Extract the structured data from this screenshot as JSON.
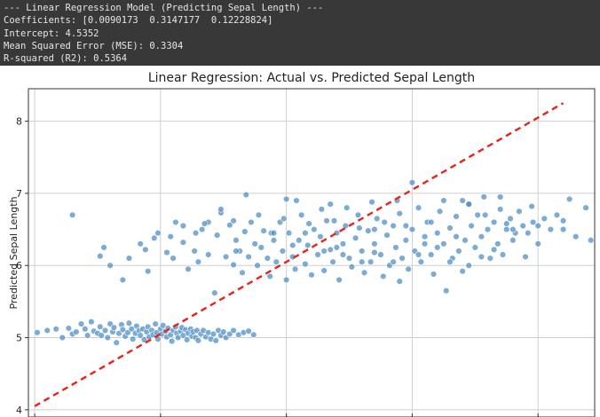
{
  "console": {
    "lines": [
      "--- Linear Regression Model (Predicting Sepal Length) ---",
      "Coefficients: [0.0090173  0.3147177  0.12228824]",
      "Intercept: 4.5352",
      "Mean Squared Error (MSE): 0.3304",
      "R-squared (R2): 0.5364"
    ]
  },
  "chart_data": {
    "type": "scatter",
    "title": "Linear Regression: Actual vs. Predicted Sepal Length",
    "xlabel": "",
    "ylabel": "Predicted Sepal Length",
    "xlim": [
      3.95,
      8.45
    ],
    "ylim": [
      3.9,
      8.45
    ],
    "yticks": [
      4,
      5,
      6,
      7,
      8
    ],
    "xgrid": [
      4.0,
      5.0,
      6.0,
      7.0,
      8.0
    ],
    "grid": true,
    "point_color": "#4a8bc2",
    "reference_line": {
      "style": "dashed",
      "color": "#e8231b",
      "x": [
        4.0,
        8.2
      ],
      "y": [
        4.05,
        8.25
      ]
    },
    "series": [
      {
        "points": [
          [
            4.02,
            5.07
          ],
          [
            4.1,
            5.1
          ],
          [
            4.17,
            5.12
          ],
          [
            4.22,
            5.0
          ],
          [
            4.27,
            5.13
          ],
          [
            4.3,
            5.05
          ],
          [
            4.33,
            5.08
          ],
          [
            4.37,
            5.19
          ],
          [
            4.4,
            5.12
          ],
          [
            4.42,
            5.03
          ],
          [
            4.45,
            5.22
          ],
          [
            4.47,
            5.09
          ],
          [
            4.5,
            5.06
          ],
          [
            4.52,
            5.15
          ],
          [
            4.53,
            5.03
          ],
          [
            4.56,
            5.1
          ],
          [
            4.58,
            5.0
          ],
          [
            4.6,
            5.19
          ],
          [
            4.62,
            5.08
          ],
          [
            4.63,
            5.14
          ],
          [
            4.65,
            4.93
          ],
          [
            4.67,
            5.06
          ],
          [
            4.69,
            5.18
          ],
          [
            4.7,
            5.11
          ],
          [
            4.72,
            5.02
          ],
          [
            4.74,
            5.07
          ],
          [
            4.75,
            5.2
          ],
          [
            4.77,
            5.12
          ],
          [
            4.78,
            4.98
          ],
          [
            4.8,
            5.06
          ],
          [
            4.81,
            5.16
          ],
          [
            4.83,
            5.1
          ],
          [
            4.84,
            5.03
          ],
          [
            4.86,
            5.12
          ],
          [
            4.87,
            4.97
          ],
          [
            4.89,
            5.08
          ],
          [
            4.9,
            5.15
          ],
          [
            4.91,
            5.01
          ],
          [
            4.93,
            5.1
          ],
          [
            4.94,
            5.04
          ],
          [
            4.96,
            5.19
          ],
          [
            4.97,
            5.07
          ],
          [
            4.98,
            4.98
          ],
          [
            5.0,
            5.12
          ],
          [
            5.01,
            5.05
          ],
          [
            5.02,
            5.17
          ],
          [
            5.04,
            5.09
          ],
          [
            5.05,
            5.01
          ],
          [
            5.06,
            5.13
          ],
          [
            5.08,
            5.04
          ],
          [
            5.09,
            4.95
          ],
          [
            5.1,
            5.1
          ],
          [
            5.12,
            5.15
          ],
          [
            5.13,
            5.06
          ],
          [
            5.14,
            5.0
          ],
          [
            5.16,
            5.09
          ],
          [
            5.17,
            5.14
          ],
          [
            5.18,
            5.03
          ],
          [
            5.2,
            5.11
          ],
          [
            5.21,
            4.97
          ],
          [
            5.22,
            5.06
          ],
          [
            5.24,
            5.12
          ],
          [
            5.25,
            5.02
          ],
          [
            5.26,
            5.08
          ],
          [
            5.28,
            5.0
          ],
          [
            5.29,
            5.1
          ],
          [
            5.3,
            4.96
          ],
          [
            5.32,
            5.05
          ],
          [
            5.34,
            5.1
          ],
          [
            5.36,
            5.01
          ],
          [
            5.38,
            5.07
          ],
          [
            5.4,
            4.98
          ],
          [
            5.42,
            5.05
          ],
          [
            5.44,
            4.96
          ],
          [
            5.46,
            5.1
          ],
          [
            5.48,
            5.03
          ],
          [
            5.5,
            5.08
          ],
          [
            5.52,
            5.0
          ],
          [
            5.55,
            5.05
          ],
          [
            5.58,
            5.1
          ],
          [
            5.62,
            5.04
          ],
          [
            5.66,
            5.07
          ],
          [
            5.7,
            5.09
          ],
          [
            5.74,
            5.04
          ],
          [
            4.75,
            6.1
          ],
          [
            4.6,
            6.0
          ],
          [
            4.52,
            6.13
          ],
          [
            4.84,
            6.3
          ],
          [
            4.9,
            5.92
          ],
          [
            5.05,
            6.18
          ],
          [
            5.1,
            6.1
          ],
          [
            5.18,
            6.32
          ],
          [
            5.22,
            5.95
          ],
          [
            5.27,
            6.2
          ],
          [
            5.3,
            6.05
          ],
          [
            5.33,
            6.5
          ],
          [
            5.38,
            6.15
          ],
          [
            5.43,
            5.62
          ],
          [
            5.45,
            6.42
          ],
          [
            5.48,
            6.73
          ],
          [
            5.52,
            6.12
          ],
          [
            5.55,
            6.56
          ],
          [
            5.58,
            6.01
          ],
          [
            5.6,
            6.35
          ],
          [
            5.63,
            6.2
          ],
          [
            5.65,
            5.9
          ],
          [
            5.67,
            6.47
          ],
          [
            5.7,
            6.12
          ],
          [
            5.72,
            6.6
          ],
          [
            5.75,
            6.3
          ],
          [
            5.77,
            6.0
          ],
          [
            5.8,
            6.25
          ],
          [
            5.82,
            6.48
          ],
          [
            5.85,
            6.1
          ],
          [
            5.87,
            5.85
          ],
          [
            5.9,
            6.35
          ],
          [
            5.92,
            6.05
          ],
          [
            5.95,
            6.6
          ],
          [
            5.97,
            6.2
          ],
          [
            6.0,
            5.8
          ],
          [
            6.02,
            6.45
          ],
          [
            6.05,
            6.12
          ],
          [
            6.07,
            5.95
          ],
          [
            6.1,
            6.35
          ],
          [
            6.12,
            6.7
          ],
          [
            6.15,
            6.02
          ],
          [
            6.17,
            6.28
          ],
          [
            6.2,
            5.87
          ],
          [
            6.22,
            6.5
          ],
          [
            6.25,
            6.15
          ],
          [
            6.27,
            6.4
          ],
          [
            6.3,
            5.93
          ],
          [
            6.32,
            6.62
          ],
          [
            6.35,
            6.22
          ],
          [
            6.37,
            6.05
          ],
          [
            6.4,
            6.45
          ],
          [
            6.42,
            5.8
          ],
          [
            6.45,
            6.3
          ],
          [
            6.47,
            6.55
          ],
          [
            6.5,
            6.1
          ],
          [
            6.52,
            5.98
          ],
          [
            6.55,
            6.38
          ],
          [
            6.57,
            6.7
          ],
          [
            6.6,
            6.2
          ],
          [
            6.62,
            5.9
          ],
          [
            6.65,
            6.48
          ],
          [
            6.67,
            6.05
          ],
          [
            6.7,
            6.3
          ],
          [
            6.72,
            6.65
          ],
          [
            6.75,
            6.15
          ],
          [
            6.77,
            5.85
          ],
          [
            6.8,
            6.42
          ],
          [
            6.82,
            6.0
          ],
          [
            6.85,
            6.55
          ],
          [
            6.87,
            6.25
          ],
          [
            6.9,
            6.72
          ],
          [
            6.92,
            6.1
          ],
          [
            6.95,
            6.35
          ],
          [
            6.97,
            5.95
          ],
          [
            7.0,
            6.5
          ],
          [
            7.02,
            6.2
          ],
          [
            7.05,
            6.8
          ],
          [
            7.07,
            6.05
          ],
          [
            7.1,
            6.4
          ],
          [
            7.12,
            6.6
          ],
          [
            7.15,
            6.15
          ],
          [
            7.17,
            5.88
          ],
          [
            7.2,
            6.45
          ],
          [
            7.22,
            6.75
          ],
          [
            7.25,
            6.3
          ],
          [
            7.27,
            5.65
          ],
          [
            7.3,
            6.52
          ],
          [
            7.32,
            6.1
          ],
          [
            7.35,
            6.68
          ],
          [
            7.37,
            6.2
          ],
          [
            7.4,
            6.9
          ],
          [
            7.42,
            6.35
          ],
          [
            7.45,
            6.0
          ],
          [
            7.47,
            6.55
          ],
          [
            7.5,
            6.25
          ],
          [
            7.52,
            6.7
          ],
          [
            7.55,
            6.4
          ],
          [
            7.57,
            6.95
          ],
          [
            7.6,
            6.5
          ],
          [
            7.62,
            6.1
          ],
          [
            7.65,
            6.6
          ],
          [
            7.68,
            6.3
          ],
          [
            7.7,
            6.78
          ],
          [
            7.72,
            6.15
          ],
          [
            7.75,
            6.5
          ],
          [
            7.78,
            6.65
          ],
          [
            7.8,
            6.35
          ],
          [
            7.85,
            6.75
          ],
          [
            7.88,
            6.55
          ],
          [
            7.92,
            6.45
          ],
          [
            7.96,
            6.6
          ],
          [
            8.0,
            6.3
          ],
          [
            8.05,
            6.65
          ],
          [
            8.15,
            6.7
          ],
          [
            8.2,
            6.5
          ],
          [
            8.25,
            6.92
          ],
          [
            8.3,
            6.4
          ],
          [
            8.38,
            6.8
          ],
          [
            8.42,
            6.35
          ],
          [
            8.2,
            6.62
          ],
          [
            8.1,
            6.5
          ],
          [
            7.95,
            6.82
          ],
          [
            7.82,
            6.45
          ],
          [
            7.7,
            6.95
          ],
          [
            7.58,
            6.7
          ],
          [
            7.45,
            6.85
          ],
          [
            7.35,
            6.4
          ],
          [
            7.25,
            6.9
          ],
          [
            7.15,
            6.6
          ],
          [
            7.0,
            7.15
          ],
          [
            6.95,
            6.55
          ],
          [
            6.88,
            6.9
          ],
          [
            6.78,
            6.6
          ],
          [
            6.68,
            6.88
          ],
          [
            6.58,
            6.52
          ],
          [
            6.48,
            6.8
          ],
          [
            6.38,
            6.62
          ],
          [
            6.28,
            6.78
          ],
          [
            6.18,
            6.58
          ],
          [
            6.08,
            6.9
          ],
          [
            5.98,
            6.65
          ],
          [
            5.88,
            6.45
          ],
          [
            5.78,
            6.7
          ],
          [
            5.68,
            6.98
          ],
          [
            5.58,
            6.62
          ],
          [
            5.48,
            6.78
          ],
          [
            5.38,
            6.6
          ],
          [
            5.28,
            6.45
          ],
          [
            5.18,
            6.55
          ],
          [
            5.08,
            6.4
          ],
          [
            4.98,
            6.45
          ],
          [
            4.88,
            6.22
          ],
          [
            4.7,
            5.8
          ],
          [
            4.55,
            6.25
          ],
          [
            4.3,
            6.7
          ],
          [
            4.95,
            6.38
          ],
          [
            5.12,
            6.6
          ],
          [
            5.35,
            6.58
          ],
          [
            5.6,
            6.2
          ],
          [
            5.9,
            6.45
          ],
          [
            6.05,
            6.28
          ],
          [
            6.15,
            6.45
          ],
          [
            6.3,
            6.2
          ],
          [
            6.4,
            6.25
          ],
          [
            6.45,
            6.15
          ],
          [
            6.6,
            6.05
          ],
          [
            6.7,
            6.18
          ],
          [
            6.85,
            6.05
          ],
          [
            6.9,
            5.78
          ],
          [
            7.05,
            6.15
          ],
          [
            7.2,
            6.25
          ],
          [
            7.3,
            6.05
          ],
          [
            7.4,
            5.92
          ],
          [
            7.55,
            6.12
          ],
          [
            7.65,
            6.22
          ],
          [
            7.8,
            6.5
          ],
          [
            7.9,
            6.12
          ],
          [
            6.0,
            6.92
          ],
          [
            6.35,
            6.85
          ],
          [
            6.7,
            6.5
          ],
          [
            7.1,
            6.3
          ],
          [
            7.45,
            6.85
          ],
          [
            7.75,
            6.58
          ],
          [
            8.0,
            6.55
          ]
        ]
      }
    ]
  }
}
